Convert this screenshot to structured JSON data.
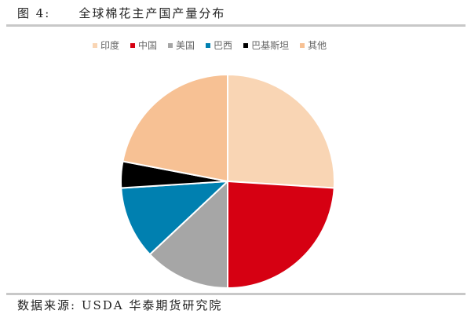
{
  "header": {
    "figure_label": "图 4:",
    "title": "全球棉花主产国产量分布"
  },
  "footer": {
    "source": "数据来源: USDA 华泰期货研究院"
  },
  "chart_data": {
    "type": "pie",
    "title": "全球棉花主产国产量分布",
    "categories": [
      "印度",
      "中国",
      "美国",
      "巴西",
      "巴基斯坦",
      "其他"
    ],
    "values": [
      26,
      24,
      13,
      11,
      4,
      22
    ],
    "colors": [
      "#F9D5B4",
      "#D60012",
      "#A6A6A6",
      "#0080B0",
      "#000000",
      "#F7C194"
    ],
    "legend_position": "top",
    "start_angle_deg": 0,
    "direction": "clockwise"
  }
}
